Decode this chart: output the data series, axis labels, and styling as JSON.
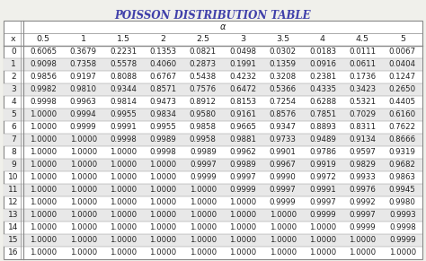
{
  "title": "POISSON DISTRIBUTION TABLE",
  "alpha_label": "α",
  "col_headers": [
    "x",
    "0.5",
    "1",
    "1.5",
    "2",
    "2.5",
    "3",
    "3.5",
    "4",
    "4.5",
    "5"
  ],
  "rows": [
    [
      0,
      0.6065,
      0.3679,
      0.2231,
      0.1353,
      0.0821,
      0.0498,
      0.0302,
      0.0183,
      0.0111,
      0.0067
    ],
    [
      1,
      0.9098,
      0.7358,
      0.5578,
      0.406,
      0.2873,
      0.1991,
      0.1359,
      0.0916,
      0.0611,
      0.0404
    ],
    [
      2,
      0.9856,
      0.9197,
      0.8088,
      0.6767,
      0.5438,
      0.4232,
      0.3208,
      0.2381,
      0.1736,
      0.1247
    ],
    [
      3,
      0.9982,
      0.981,
      0.9344,
      0.8571,
      0.7576,
      0.6472,
      0.5366,
      0.4335,
      0.3423,
      0.265
    ],
    [
      4,
      0.9998,
      0.9963,
      0.9814,
      0.9473,
      0.8912,
      0.8153,
      0.7254,
      0.6288,
      0.5321,
      0.4405
    ],
    [
      5,
      1.0,
      0.9994,
      0.9955,
      0.9834,
      0.958,
      0.9161,
      0.8576,
      0.7851,
      0.7029,
      0.616
    ],
    [
      6,
      1.0,
      0.9999,
      0.9991,
      0.9955,
      0.9858,
      0.9665,
      0.9347,
      0.8893,
      0.8311,
      0.7622
    ],
    [
      7,
      1.0,
      1.0,
      0.9998,
      0.9989,
      0.9958,
      0.9881,
      0.9733,
      0.9489,
      0.9134,
      0.8666
    ],
    [
      8,
      1.0,
      1.0,
      1.0,
      0.9998,
      0.9989,
      0.9962,
      0.9901,
      0.9786,
      0.9597,
      0.9319
    ],
    [
      9,
      1.0,
      1.0,
      1.0,
      1.0,
      0.9997,
      0.9989,
      0.9967,
      0.9919,
      0.9829,
      0.9682
    ],
    [
      10,
      1.0,
      1.0,
      1.0,
      1.0,
      0.9999,
      0.9997,
      0.999,
      0.9972,
      0.9933,
      0.9863
    ],
    [
      11,
      1.0,
      1.0,
      1.0,
      1.0,
      1.0,
      0.9999,
      0.9997,
      0.9991,
      0.9976,
      0.9945
    ],
    [
      12,
      1.0,
      1.0,
      1.0,
      1.0,
      1.0,
      1.0,
      0.9999,
      0.9997,
      0.9992,
      0.998
    ],
    [
      13,
      1.0,
      1.0,
      1.0,
      1.0,
      1.0,
      1.0,
      1.0,
      0.9999,
      0.9997,
      0.9993
    ],
    [
      14,
      1.0,
      1.0,
      1.0,
      1.0,
      1.0,
      1.0,
      1.0,
      1.0,
      0.9999,
      0.9998
    ],
    [
      15,
      1.0,
      1.0,
      1.0,
      1.0,
      1.0,
      1.0,
      1.0,
      1.0,
      1.0,
      0.9999
    ],
    [
      16,
      1.0,
      1.0,
      1.0,
      1.0,
      1.0,
      1.0,
      1.0,
      1.0,
      1.0,
      1.0
    ]
  ],
  "bg_color": "#f0f0eb",
  "title_color": "#4040aa",
  "border_color": "#888888",
  "text_color": "#222222",
  "table_bg": "#ffffff",
  "row_alt_color": "#e8e8e8"
}
